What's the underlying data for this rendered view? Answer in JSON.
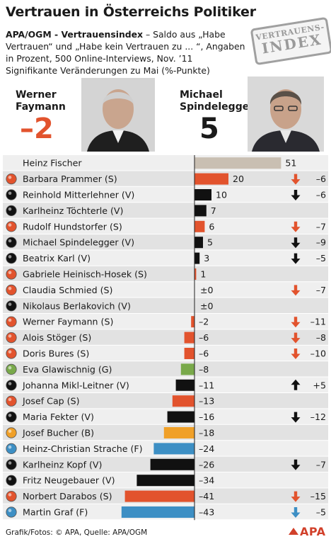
{
  "header": {
    "title": "Vertrauen in Österreichs Politiker",
    "subtitle_lead": "APA/OGM - Vertrauensindex",
    "subtitle_rest": " – Saldo aus „Habe Vertrauen“ und „Habe kein Vertrauen zu ... “, Angaben in Prozent, 500 Online-Interviews, Nov. ’11",
    "subtitle_line2": "Signifikante Veränderungen zu Mai (%-Punkte)",
    "stamp_line1": "VERTRAUENS-",
    "stamp_line2": "INDEX"
  },
  "highlights": [
    {
      "name_line1": "Werner",
      "name_line2": "Faymann",
      "change": "–2"
    },
    {
      "name_line1": "Michael",
      "name_line2": "Spindelegger",
      "change": "5"
    }
  ],
  "colors": {
    "SPOE": "#e2532d",
    "OEVP": "#111111",
    "Gruene": "#79a94a",
    "BZOE": "#f0a028",
    "FPOE": "#3d8fc4",
    "none": "#c9bfb2",
    "row_light": "#efefef",
    "row_dark": "#e2e2e2",
    "arrow_up": "#111111",
    "axis": "#222222"
  },
  "chart_data": {
    "type": "bar",
    "orientation": "horizontal",
    "xlim": [
      -45,
      55
    ],
    "categories": [
      "Heinz Fischer",
      "Barbara Prammer (S)",
      "Reinhold Mitterlehner (V)",
      "Karlheinz Töchterle (V)",
      "Rudolf Hundstorfer (S)",
      "Michael Spindelegger (V)",
      "Beatrix Karl (V)",
      "Gabriele Heinisch-Hosek (S)",
      "Claudia Schmied (S)",
      "Nikolaus Berlakovich (V)",
      "Werner Faymann (S)",
      "Alois Stöger (S)",
      "Doris Bures (S)",
      "Eva Glawischnig (G)",
      "Johanna Mikl-Leitner (V)",
      "Josef Cap (S)",
      "Maria Fekter (V)",
      "Josef Bucher (B)",
      "Heinz-Christian Strache (F)",
      "Karlheinz Kopf (V)",
      "Fritz Neugebauer (V)",
      "Norbert Darabos (S)",
      "Martin Graf (F)"
    ],
    "values": [
      51,
      20,
      10,
      7,
      6,
      5,
      3,
      1,
      0,
      0,
      -2,
      -6,
      -6,
      -8,
      -11,
      -13,
      -16,
      -18,
      -24,
      -26,
      -34,
      -41,
      -43
    ],
    "value_labels": [
      "51",
      "20",
      "10",
      "7",
      "6",
      "5",
      "3",
      "1",
      "±0",
      "±0",
      "–2",
      "–6",
      "–6",
      "–8",
      "–11",
      "–13",
      "–16",
      "–18",
      "–24",
      "–26",
      "–34",
      "–41",
      "–43"
    ],
    "party": [
      "none",
      "SPOE",
      "OEVP",
      "OEVP",
      "SPOE",
      "OEVP",
      "OEVP",
      "SPOE",
      "SPOE",
      "OEVP",
      "SPOE",
      "SPOE",
      "SPOE",
      "Gruene",
      "OEVP",
      "SPOE",
      "OEVP",
      "BZOE",
      "FPOE",
      "OEVP",
      "OEVP",
      "SPOE",
      "FPOE"
    ],
    "change": [
      null,
      -6,
      -6,
      null,
      -7,
      -9,
      -5,
      null,
      -7,
      null,
      -11,
      -8,
      -10,
      null,
      5,
      null,
      -12,
      null,
      null,
      -7,
      null,
      -15,
      -5
    ],
    "change_labels": [
      "",
      "–6",
      "–6",
      "",
      "–7",
      "–9",
      "–5",
      "",
      "–7",
      "",
      "–11",
      "–8",
      "–10",
      "",
      "+5",
      "",
      "–12",
      "",
      "",
      "–7",
      "",
      "–15",
      "–5"
    ]
  },
  "footer": {
    "source": "Grafik/Fotos: © APA, Quelle: APA/OGM",
    "logo": "APA"
  }
}
